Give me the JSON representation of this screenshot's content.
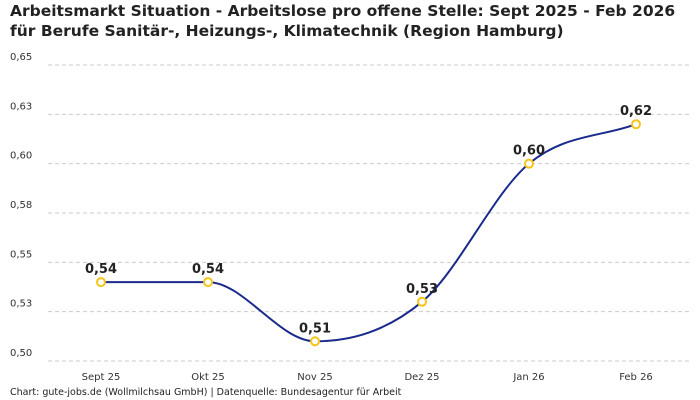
{
  "chart_data": {
    "type": "line",
    "title": "Arbeitsmarkt Situation - Arbeitslose pro offene Stelle: Sept 2025 - Feb 2026 für Berufe Sanitär-, Heizungs-, Klimatechnik (Region Hamburg)",
    "categories": [
      "Sept 25",
      "Okt 25",
      "Nov 25",
      "Dez 25",
      "Jan 26",
      "Feb 26"
    ],
    "values": [
      0.54,
      0.54,
      0.51,
      0.53,
      0.6,
      0.62
    ],
    "data_labels": [
      "0,54",
      "0,54",
      "0,51",
      "0,53",
      "0,60",
      "0,62"
    ],
    "yticks": [
      0.5,
      0.525,
      0.55,
      0.575,
      0.6,
      0.625,
      0.65
    ],
    "ytick_labels": [
      "0,50",
      "0,53",
      "0,55",
      "0,58",
      "0,60",
      "0,63",
      "0,65"
    ],
    "ylim": [
      0.5,
      0.65
    ],
    "xlabel": "",
    "ylabel": "",
    "grid": "horizontal dashed",
    "line_color": "#1a2a8c",
    "marker_color": "#f5c518",
    "curve": "smooth"
  },
  "footer": "Chart: gute-jobs.de (Wollmilchsau GmbH) | Datenquelle: Bundesagentur für Arbeit"
}
